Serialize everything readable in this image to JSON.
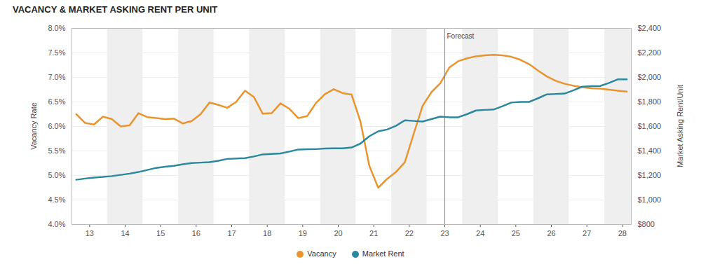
{
  "chart_data": {
    "type": "line",
    "title": "VACANCY & MARKET ASKING RENT PER UNIT",
    "x": [
      2013.125,
      2013.375,
      2013.625,
      2013.875,
      2014.125,
      2014.375,
      2014.625,
      2014.875,
      2015.125,
      2015.375,
      2015.625,
      2015.875,
      2016.125,
      2016.375,
      2016.625,
      2016.875,
      2017.125,
      2017.375,
      2017.625,
      2017.875,
      2018.125,
      2018.375,
      2018.625,
      2018.875,
      2019.125,
      2019.375,
      2019.625,
      2019.875,
      2020.125,
      2020.375,
      2020.625,
      2020.875,
      2021.125,
      2021.375,
      2021.625,
      2021.875,
      2022.125,
      2022.375,
      2022.625,
      2022.875,
      2023.125,
      2023.375,
      2023.625,
      2023.875,
      2024.125,
      2024.375,
      2024.625,
      2024.875,
      2025.125,
      2025.375,
      2025.625,
      2025.875,
      2026.125,
      2026.375,
      2026.625,
      2026.875,
      2027.125,
      2027.375,
      2027.625,
      2027.875,
      2028.125,
      2028.375,
      2028.625
    ],
    "series": [
      {
        "name": "Vacancy",
        "color": "#e8942f",
        "values": [
          6.25,
          6.07,
          6.04,
          6.2,
          6.15,
          6.0,
          6.02,
          6.27,
          6.19,
          6.17,
          6.15,
          6.16,
          6.06,
          6.11,
          6.25,
          6.49,
          6.44,
          6.38,
          6.5,
          6.73,
          6.6,
          6.26,
          6.27,
          6.47,
          6.36,
          6.17,
          6.21,
          6.48,
          6.66,
          6.76,
          6.68,
          6.65,
          6.1,
          5.2,
          4.75,
          4.93,
          5.07,
          5.27,
          5.85,
          6.42,
          6.7,
          6.88,
          7.2,
          7.33,
          7.39,
          7.43,
          7.45,
          7.46,
          7.45,
          7.42,
          7.36,
          7.27,
          7.14,
          7.02,
          6.93,
          6.87,
          6.83,
          6.8,
          6.78,
          6.77,
          6.75,
          6.73,
          6.71
        ]
      },
      {
        "name": "Market Rent",
        "color": "#2b889d",
        "axis": "y2",
        "values": [
          1165,
          1175,
          1183,
          1188,
          1195,
          1205,
          1215,
          1228,
          1245,
          1262,
          1272,
          1278,
          1292,
          1302,
          1305,
          1308,
          1320,
          1335,
          1338,
          1342,
          1355,
          1372,
          1376,
          1380,
          1395,
          1412,
          1414,
          1415,
          1420,
          1422,
          1422,
          1428,
          1460,
          1520,
          1560,
          1575,
          1605,
          1650,
          1645,
          1640,
          1660,
          1680,
          1675,
          1675,
          1700,
          1730,
          1735,
          1738,
          1765,
          1795,
          1800,
          1800,
          1830,
          1862,
          1865,
          1868,
          1895,
          1925,
          1928,
          1930,
          1955,
          1985,
          1985
        ]
      }
    ],
    "xlim": [
      2013,
      2028.75
    ],
    "xticks": [
      {
        "value": 2013.5,
        "label": "13"
      },
      {
        "value": 2014.5,
        "label": "14"
      },
      {
        "value": 2015.5,
        "label": "15"
      },
      {
        "value": 2016.5,
        "label": "16"
      },
      {
        "value": 2017.5,
        "label": "17"
      },
      {
        "value": 2018.5,
        "label": "18"
      },
      {
        "value": 2019.5,
        "label": "19"
      },
      {
        "value": 2020.5,
        "label": "20"
      },
      {
        "value": 2021.5,
        "label": "21"
      },
      {
        "value": 2022.5,
        "label": "22"
      },
      {
        "value": 2023.5,
        "label": "23"
      },
      {
        "value": 2024.5,
        "label": "24"
      },
      {
        "value": 2025.5,
        "label": "25"
      },
      {
        "value": 2026.5,
        "label": "26"
      },
      {
        "value": 2027.5,
        "label": "27"
      },
      {
        "value": 2028.5,
        "label": "28"
      }
    ],
    "ylim": [
      4,
      8
    ],
    "yticks": [
      {
        "value": 4,
        "label": "4.0%"
      },
      {
        "value": 4.5,
        "label": "4.5%"
      },
      {
        "value": 5,
        "label": "5.0%"
      },
      {
        "value": 5.5,
        "label": "5.5%"
      },
      {
        "value": 6,
        "label": "6.0%"
      },
      {
        "value": 6.5,
        "label": "6.5%"
      },
      {
        "value": 7,
        "label": "7.0%"
      },
      {
        "value": 7.5,
        "label": "7.5%"
      },
      {
        "value": 8,
        "label": "8.0%"
      }
    ],
    "y2lim": [
      800,
      2400
    ],
    "y2ticks": [
      {
        "value": 800,
        "label": "$800"
      },
      {
        "value": 1000,
        "label": "$1,000"
      },
      {
        "value": 1200,
        "label": "$1,200"
      },
      {
        "value": 1400,
        "label": "$1,400"
      },
      {
        "value": 1600,
        "label": "$1,600"
      },
      {
        "value": 1800,
        "label": "$1,800"
      },
      {
        "value": 2000,
        "label": "$2,000"
      },
      {
        "value": 2200,
        "label": "$2,200"
      },
      {
        "value": 2400,
        "label": "$2,400"
      }
    ],
    "ylabel": "Vacancy Rate",
    "y2label": "Market Asking Rent/Unit",
    "annotations": [
      {
        "x": 2023.5,
        "text": "Forecast"
      }
    ],
    "grid": true,
    "legend": "bottom"
  }
}
